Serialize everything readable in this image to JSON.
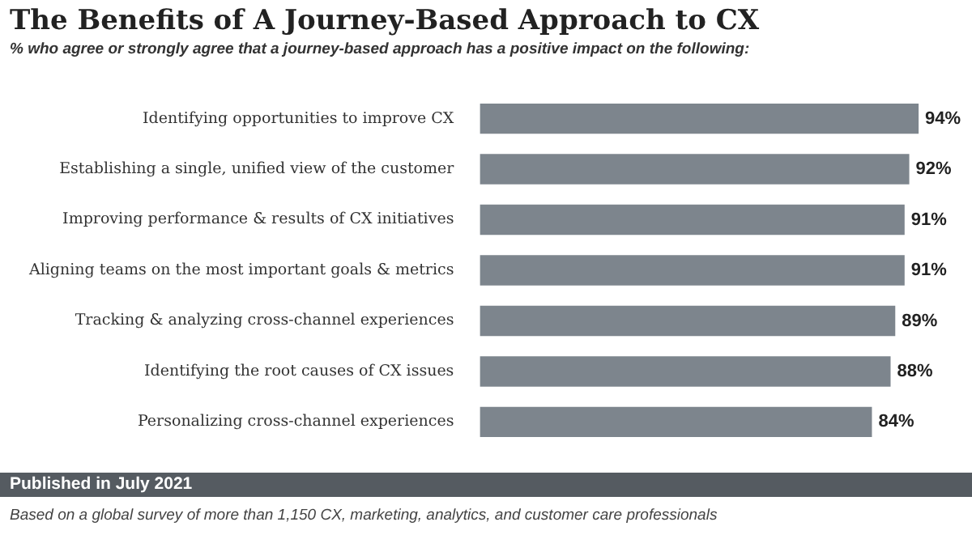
{
  "chart_data": {
    "type": "bar",
    "orientation": "horizontal",
    "title": "The Benefits of A Journey-Based Approach to CX",
    "subtitle": "% who agree or strongly agree that a journey-based approach has a positive impact on the following:",
    "categories": [
      "Identifying opportunities to improve CX",
      "Establishing a single, unified view of the customer",
      "Improving performance & results of CX initiatives",
      "Aligning teams on the most important goals & metrics",
      "Tracking & analyzing cross-channel experiences",
      "Identifying the root causes of CX issues",
      "Personalizing cross-channel experiences"
    ],
    "values": [
      94,
      92,
      91,
      91,
      89,
      88,
      84
    ],
    "value_labels": [
      "94%",
      "92%",
      "91%",
      "91%",
      "89%",
      "88%",
      "84%"
    ],
    "color": "#7d858d",
    "annotations": [
      "Published in July 2021",
      "Based on a global survey of more than 1,150 CX, marketing, analytics, and customer care professionals"
    ],
    "legend": false
  }
}
